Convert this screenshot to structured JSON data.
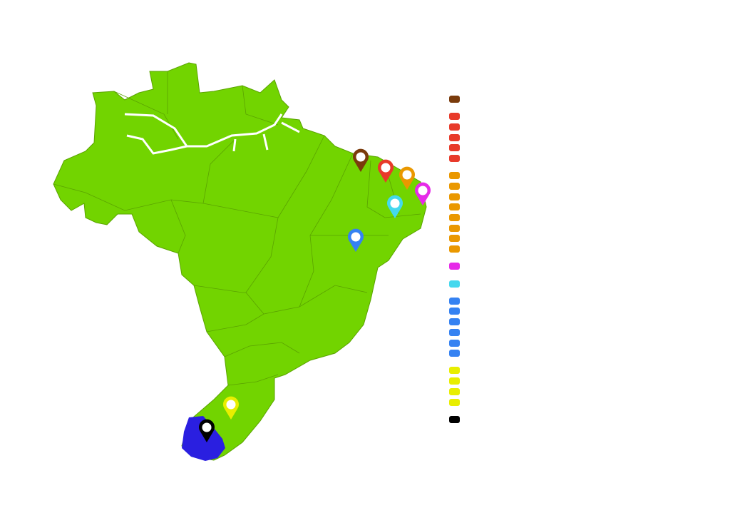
{
  "map": {
    "land_color": "#72d400",
    "border_color": "#5aa300",
    "river_color": "#ffffff",
    "highlight_region_color": "#2a1fe0"
  },
  "markers": [
    {
      "name": "brown",
      "color": "#7a3b0c"
    },
    {
      "name": "red",
      "color": "#e83a2a"
    },
    {
      "name": "orange",
      "color": "#ea9800"
    },
    {
      "name": "magenta",
      "color": "#e62ae8"
    },
    {
      "name": "cyan",
      "color": "#44d8ee"
    },
    {
      "name": "blue",
      "color": "#3582f2"
    },
    {
      "name": "yellow",
      "color": "#e8ee00"
    },
    {
      "name": "black",
      "color": "#000000"
    }
  ],
  "legend": {
    "groups": [
      {
        "color": "#7a3b0c",
        "count": 1
      },
      {
        "color": "#e83a2a",
        "count": 5
      },
      {
        "color": "#ea9800",
        "count": 8
      },
      {
        "color": "#e62ae8",
        "count": 1
      },
      {
        "color": "#44d8ee",
        "count": 1
      },
      {
        "color": "#3582f2",
        "count": 6
      },
      {
        "color": "#e8ee00",
        "count": 4
      },
      {
        "color": "#000000",
        "count": 1
      }
    ]
  }
}
